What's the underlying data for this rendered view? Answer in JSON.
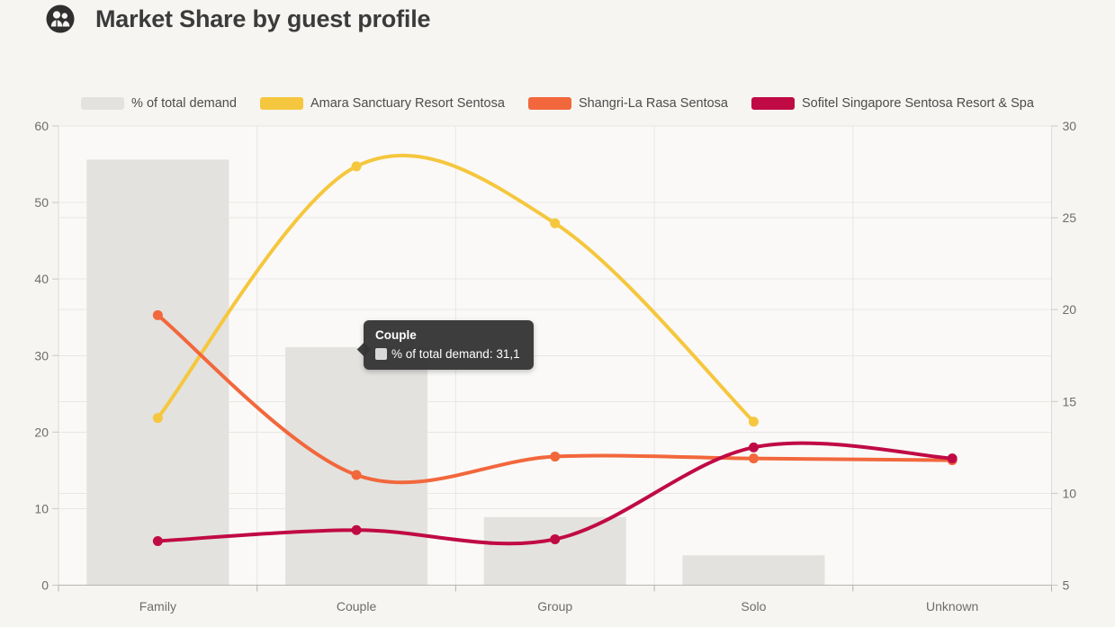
{
  "header": {
    "title": "Market Share by guest profile",
    "icon": "guests-circle-icon"
  },
  "legend": [
    {
      "label": "% of total demand",
      "color": "#e3e2df",
      "type": "bar"
    },
    {
      "label": "Amara Sanctuary Resort Sentosa",
      "color": "#f5c73e",
      "type": "line"
    },
    {
      "label": "Shangri-La Rasa Sentosa",
      "color": "#f2673c",
      "type": "line"
    },
    {
      "label": "Sofitel Singapore Sentosa Resort & Spa",
      "color": "#c00a45",
      "type": "line"
    }
  ],
  "tooltip": {
    "title": "Couple",
    "text": "% of total demand: 31,1",
    "swatch_color": "#d9d9d9"
  },
  "chart_data": {
    "type": "combo",
    "categories": [
      "Family",
      "Couple",
      "Group",
      "Solo",
      "Unknown"
    ],
    "bar_series": {
      "name": "% of total demand",
      "axis": "left",
      "color": "#e3e2df",
      "values": [
        55.6,
        31.1,
        8.9,
        3.9,
        null
      ]
    },
    "line_series": [
      {
        "name": "Amara Sanctuary Resort Sentosa",
        "axis": "right",
        "color": "#f5c73e",
        "values": [
          14.1,
          27.8,
          24.7,
          13.9,
          null
        ]
      },
      {
        "name": "Shangri-La Rasa Sentosa",
        "axis": "right",
        "color": "#f2673c",
        "values": [
          19.7,
          11.0,
          12.0,
          11.9,
          11.8
        ]
      },
      {
        "name": "Sofitel Singapore Sentosa Resort & Spa",
        "axis": "right",
        "color": "#c00a45",
        "values": [
          7.4,
          8.0,
          7.5,
          12.5,
          11.9
        ]
      }
    ],
    "left_axis": {
      "min": 0,
      "max": 60,
      "step": 10,
      "ticks": [
        0,
        10,
        20,
        30,
        40,
        50,
        60
      ]
    },
    "right_axis": {
      "min": 5,
      "max": 30,
      "step": 5,
      "ticks": [
        5,
        10,
        15,
        20,
        25,
        30
      ]
    },
    "grid": true,
    "legend_position": "top"
  },
  "colors": {
    "page_bg": "#f6f5f2",
    "plot_bg": "#faf9f7",
    "grid": "#e8e7e4",
    "axis_line": "#b7b5b1",
    "tick_text": "#6d6d6d"
  }
}
